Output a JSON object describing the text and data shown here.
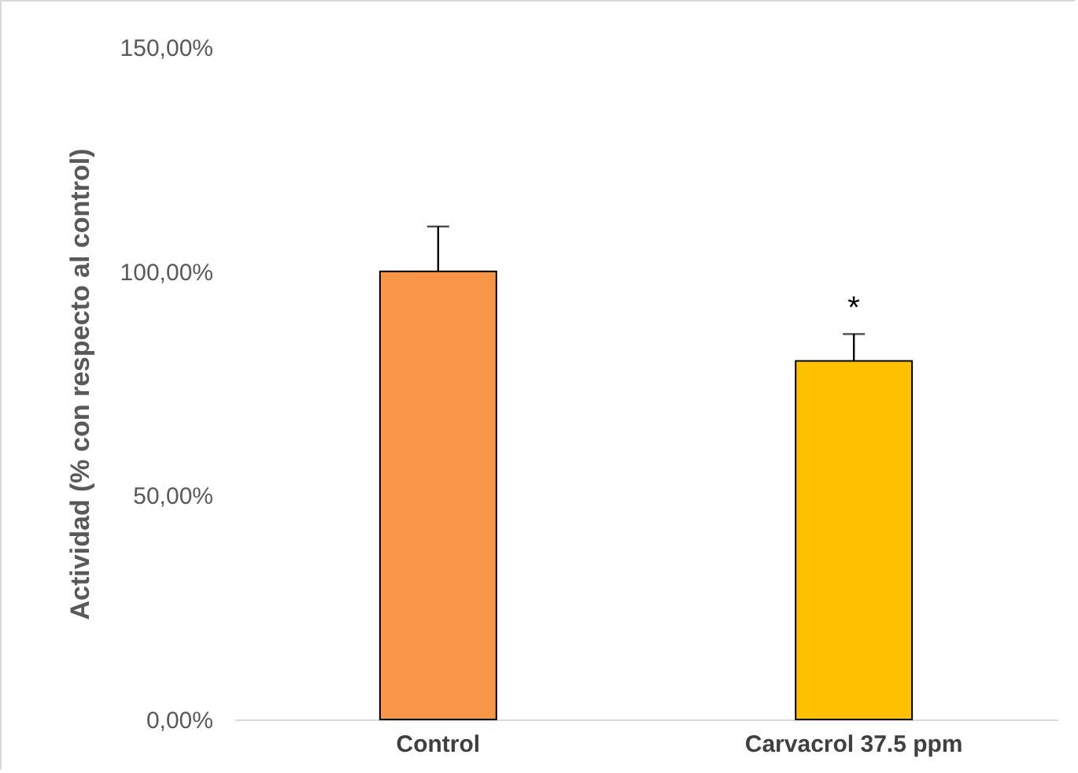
{
  "chart_data": {
    "type": "bar",
    "ylabel": "Actividad (% con respecto al control)",
    "categories": [
      "Control",
      "Carvacrol 37.5 ppm"
    ],
    "values": [
      100,
      80
    ],
    "colors": [
      "#f79646",
      "#ffc000"
    ],
    "errors": [
      [
        100,
        110
      ],
      [
        80,
        86
      ]
    ],
    "ylim": [
      0,
      150
    ],
    "yticks": [
      {
        "value": 0,
        "label": "0,00%"
      },
      {
        "value": 50,
        "label": "50,00%"
      },
      {
        "value": 100,
        "label": "100,00%"
      },
      {
        "value": 150,
        "label": "150,00%"
      }
    ],
    "annotations": [
      "*"
    ],
    "grid": false
  }
}
